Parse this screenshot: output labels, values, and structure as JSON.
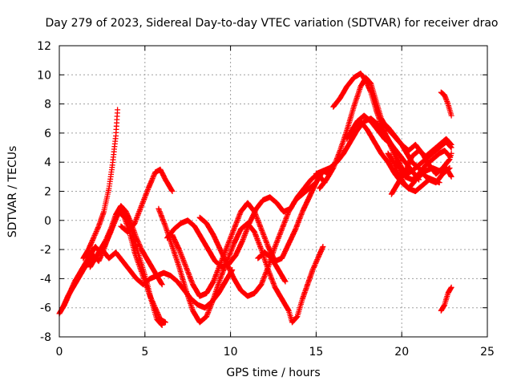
{
  "chart_data": {
    "type": "scatter",
    "title": "Day 279 of 2023, Sidereal Day-to-day VTEC variation (SDTVAR) for receiver drao",
    "xlabel": "GPS time / hours",
    "ylabel": "SDTVAR / TECUs",
    "xlim": [
      0,
      25
    ],
    "ylim": [
      -8,
      12
    ],
    "xticks": [
      0,
      5,
      10,
      15,
      20,
      25
    ],
    "yticks": [
      -8,
      -6,
      -4,
      -2,
      0,
      2,
      4,
      6,
      8,
      10,
      12
    ],
    "grid": true,
    "marker": "plus",
    "color": "#ff0000",
    "tracks": [
      [
        [
          0.0,
          -6.4
        ],
        [
          0.3,
          -5.8
        ],
        [
          0.6,
          -5.0
        ],
        [
          0.9,
          -4.2
        ],
        [
          1.2,
          -3.6
        ],
        [
          1.5,
          -3.0
        ],
        [
          1.8,
          -2.4
        ],
        [
          2.1,
          -1.8
        ],
        [
          2.4,
          -2.2
        ],
        [
          2.7,
          -1.6
        ],
        [
          3.0,
          -0.8
        ],
        [
          3.3,
          0.2
        ],
        [
          3.6,
          0.8
        ],
        [
          3.9,
          0.4
        ],
        [
          4.2,
          -0.6
        ],
        [
          4.5,
          -1.8
        ],
        [
          4.8,
          -3.0
        ],
        [
          5.1,
          -4.2
        ],
        [
          5.4,
          -5.6
        ],
        [
          5.7,
          -6.8
        ],
        [
          6.0,
          -7.2
        ]
      ],
      [
        [
          0.2,
          -6.0
        ],
        [
          0.5,
          -5.2
        ],
        [
          0.8,
          -4.6
        ],
        [
          1.1,
          -4.0
        ],
        [
          1.4,
          -3.4
        ],
        [
          1.7,
          -2.8
        ],
        [
          2.0,
          -2.4
        ],
        [
          2.3,
          -2.8
        ],
        [
          2.6,
          -2.0
        ],
        [
          2.9,
          -1.0
        ],
        [
          3.2,
          -0.2
        ],
        [
          3.5,
          0.6
        ],
        [
          3.8,
          0.2
        ],
        [
          4.1,
          -0.8
        ],
        [
          4.4,
          -2.2
        ],
        [
          4.7,
          -3.2
        ],
        [
          5.0,
          -4.2
        ],
        [
          5.3,
          -5.2
        ],
        [
          5.6,
          -6.0
        ],
        [
          5.9,
          -6.8
        ],
        [
          6.2,
          -7.0
        ]
      ],
      [
        [
          1.4,
          -2.6
        ],
        [
          1.7,
          -2.0
        ],
        [
          2.0,
          -1.2
        ],
        [
          2.3,
          -0.4
        ],
        [
          2.6,
          0.6
        ],
        [
          2.9,
          2.2
        ],
        [
          3.1,
          3.8
        ],
        [
          3.3,
          5.8
        ],
        [
          3.4,
          7.6
        ]
      ],
      [
        [
          1.8,
          -3.2
        ],
        [
          2.1,
          -2.6
        ],
        [
          2.4,
          -2.0
        ],
        [
          2.7,
          -1.4
        ],
        [
          3.0,
          -0.6
        ],
        [
          3.3,
          0.4
        ],
        [
          3.6,
          1.0
        ],
        [
          3.9,
          0.6
        ],
        [
          4.2,
          -0.2
        ],
        [
          4.5,
          -1.2
        ],
        [
          4.8,
          -2.0
        ],
        [
          5.1,
          -2.6
        ],
        [
          5.4,
          -3.2
        ],
        [
          5.7,
          -3.8
        ],
        [
          6.0,
          -4.4
        ]
      ],
      [
        [
          3.6,
          -0.4
        ],
        [
          4.0,
          -0.8
        ],
        [
          4.4,
          -0.2
        ],
        [
          4.8,
          1.0
        ],
        [
          5.2,
          2.2
        ],
        [
          5.6,
          3.3
        ],
        [
          5.9,
          3.5
        ],
        [
          6.2,
          2.8
        ],
        [
          6.5,
          2.2
        ],
        [
          6.6,
          2.0
        ]
      ],
      [
        [
          2.5,
          -2.0
        ],
        [
          2.9,
          -2.6
        ],
        [
          3.3,
          -2.2
        ],
        [
          3.7,
          -2.8
        ],
        [
          4.1,
          -3.4
        ],
        [
          4.5,
          -4.0
        ],
        [
          4.9,
          -4.4
        ],
        [
          5.3,
          -4.0
        ],
        [
          5.7,
          -3.8
        ],
        [
          6.1,
          -3.6
        ],
        [
          6.5,
          -3.8
        ],
        [
          6.9,
          -4.2
        ],
        [
          7.3,
          -4.8
        ],
        [
          7.7,
          -5.4
        ],
        [
          8.1,
          -5.8
        ],
        [
          8.5,
          -6.0
        ],
        [
          8.9,
          -5.6
        ],
        [
          9.3,
          -5.0
        ],
        [
          9.7,
          -4.2
        ],
        [
          10.1,
          -3.4
        ]
      ],
      [
        [
          5.8,
          0.8
        ],
        [
          6.2,
          -0.4
        ],
        [
          6.6,
          -1.8
        ],
        [
          7.0,
          -3.2
        ],
        [
          7.4,
          -4.8
        ],
        [
          7.8,
          -6.2
        ],
        [
          8.2,
          -7.0
        ],
        [
          8.6,
          -6.6
        ],
        [
          9.0,
          -5.4
        ],
        [
          9.4,
          -4.0
        ],
        [
          9.8,
          -2.8
        ],
        [
          10.2,
          -1.6
        ],
        [
          10.6,
          -0.6
        ],
        [
          11.0,
          -0.2
        ],
        [
          11.4,
          -0.8
        ],
        [
          11.8,
          -2.0
        ],
        [
          12.2,
          -3.4
        ],
        [
          12.6,
          -4.6
        ],
        [
          13.0,
          -5.4
        ],
        [
          13.4,
          -6.2
        ],
        [
          13.6,
          -7.0
        ],
        [
          13.9,
          -6.6
        ],
        [
          14.2,
          -5.4
        ],
        [
          14.5,
          -4.4
        ],
        [
          14.8,
          -3.4
        ],
        [
          15.1,
          -2.6
        ],
        [
          15.4,
          -1.8
        ]
      ],
      [
        [
          6.3,
          -1.2
        ],
        [
          6.7,
          -0.6
        ],
        [
          7.1,
          -0.2
        ],
        [
          7.5,
          0.0
        ],
        [
          7.9,
          -0.4
        ],
        [
          8.3,
          -1.2
        ],
        [
          8.7,
          -2.0
        ],
        [
          9.1,
          -2.8
        ],
        [
          9.5,
          -3.2
        ],
        [
          9.9,
          -3.0
        ],
        [
          10.3,
          -2.4
        ],
        [
          10.7,
          -1.4
        ],
        [
          11.1,
          -0.2
        ],
        [
          11.5,
          0.8
        ],
        [
          11.9,
          1.4
        ],
        [
          12.3,
          1.6
        ],
        [
          12.7,
          1.2
        ],
        [
          13.1,
          0.6
        ],
        [
          13.5,
          0.8
        ],
        [
          13.9,
          1.6
        ],
        [
          14.3,
          2.2
        ],
        [
          14.7,
          2.8
        ],
        [
          15.1,
          3.2
        ],
        [
          15.5,
          2.6
        ]
      ],
      [
        [
          6.6,
          -1.0
        ],
        [
          7.0,
          -2.0
        ],
        [
          7.4,
          -3.2
        ],
        [
          7.8,
          -4.4
        ],
        [
          8.2,
          -5.2
        ],
        [
          8.6,
          -5.0
        ],
        [
          9.0,
          -4.2
        ],
        [
          9.4,
          -3.0
        ],
        [
          9.8,
          -1.8
        ],
        [
          10.2,
          -0.6
        ],
        [
          10.6,
          0.6
        ],
        [
          11.0,
          1.2
        ],
        [
          11.4,
          0.6
        ],
        [
          11.8,
          -0.6
        ],
        [
          12.2,
          -1.8
        ],
        [
          12.6,
          -2.8
        ],
        [
          13.0,
          -2.6
        ],
        [
          13.4,
          -1.6
        ],
        [
          13.8,
          -0.6
        ],
        [
          14.2,
          0.6
        ],
        [
          14.6,
          1.6
        ],
        [
          15.0,
          2.6
        ],
        [
          15.4,
          3.4
        ],
        [
          15.8,
          3.2
        ]
      ],
      [
        [
          8.2,
          0.2
        ],
        [
          8.6,
          -0.2
        ],
        [
          9.0,
          -1.0
        ],
        [
          9.4,
          -2.0
        ],
        [
          9.8,
          -3.0
        ],
        [
          10.2,
          -4.0
        ],
        [
          10.6,
          -4.8
        ],
        [
          11.0,
          -5.2
        ],
        [
          11.4,
          -5.0
        ],
        [
          11.8,
          -4.4
        ],
        [
          12.2,
          -3.2
        ],
        [
          12.6,
          -1.8
        ],
        [
          13.0,
          -0.6
        ],
        [
          13.4,
          0.6
        ],
        [
          13.8,
          1.4
        ],
        [
          14.2,
          1.8
        ],
        [
          14.6,
          2.2
        ],
        [
          15.0,
          2.6
        ]
      ],
      [
        [
          15.0,
          3.2
        ],
        [
          15.4,
          3.4
        ],
        [
          15.8,
          3.6
        ],
        [
          16.2,
          4.0
        ],
        [
          16.6,
          4.6
        ],
        [
          17.0,
          5.4
        ],
        [
          17.4,
          6.2
        ],
        [
          17.8,
          6.8
        ],
        [
          18.2,
          7.0
        ],
        [
          18.6,
          6.6
        ],
        [
          19.0,
          6.0
        ],
        [
          19.4,
          5.0
        ],
        [
          19.8,
          3.8
        ],
        [
          20.2,
          3.0
        ],
        [
          20.6,
          2.8
        ],
        [
          21.0,
          3.0
        ],
        [
          21.4,
          3.4
        ],
        [
          21.8,
          3.6
        ],
        [
          22.2,
          3.4
        ],
        [
          22.6,
          3.6
        ],
        [
          22.9,
          3.0
        ]
      ],
      [
        [
          15.2,
          2.2
        ],
        [
          15.6,
          2.8
        ],
        [
          16.0,
          3.6
        ],
        [
          16.4,
          4.8
        ],
        [
          16.8,
          6.2
        ],
        [
          17.2,
          7.8
        ],
        [
          17.6,
          9.2
        ],
        [
          17.9,
          9.8
        ],
        [
          18.2,
          9.4
        ],
        [
          18.5,
          8.2
        ],
        [
          18.8,
          7.0
        ],
        [
          19.1,
          6.4
        ],
        [
          19.4,
          6.0
        ],
        [
          19.7,
          5.6
        ],
        [
          20.0,
          5.2
        ],
        [
          20.3,
          4.6
        ],
        [
          20.6,
          4.0
        ],
        [
          21.0,
          3.6
        ],
        [
          21.4,
          3.0
        ],
        [
          21.8,
          2.8
        ],
        [
          22.2,
          2.6
        ]
      ],
      [
        [
          16.0,
          7.8
        ],
        [
          16.4,
          8.4
        ],
        [
          16.8,
          9.2
        ],
        [
          17.2,
          9.8
        ],
        [
          17.6,
          10.1
        ],
        [
          17.9,
          9.6
        ],
        [
          18.2,
          8.8
        ],
        [
          18.5,
          7.6
        ],
        [
          18.8,
          6.6
        ],
        [
          19.1,
          5.8
        ],
        [
          19.4,
          5.2
        ],
        [
          19.7,
          4.4
        ],
        [
          20.0,
          3.6
        ],
        [
          20.3,
          3.2
        ],
        [
          20.6,
          3.4
        ],
        [
          21.0,
          3.8
        ],
        [
          21.4,
          4.2
        ],
        [
          21.8,
          4.6
        ],
        [
          22.2,
          5.0
        ],
        [
          22.6,
          5.4
        ],
        [
          22.9,
          5.0
        ]
      ],
      [
        [
          16.8,
          5.6
        ],
        [
          17.2,
          6.4
        ],
        [
          17.6,
          6.8
        ],
        [
          18.0,
          6.2
        ],
        [
          18.4,
          5.4
        ],
        [
          18.8,
          4.6
        ],
        [
          19.2,
          4.0
        ],
        [
          19.6,
          3.2
        ],
        [
          20.0,
          2.6
        ],
        [
          20.4,
          2.2
        ],
        [
          20.8,
          2.0
        ],
        [
          21.2,
          2.4
        ],
        [
          21.6,
          2.8
        ],
        [
          22.0,
          2.6
        ],
        [
          22.4,
          3.2
        ],
        [
          22.8,
          3.6
        ]
      ],
      [
        [
          18.8,
          6.8
        ],
        [
          19.2,
          6.4
        ],
        [
          19.6,
          5.8
        ],
        [
          20.0,
          5.2
        ],
        [
          20.4,
          4.8
        ],
        [
          20.8,
          5.2
        ],
        [
          21.2,
          4.6
        ],
        [
          21.6,
          3.8
        ],
        [
          22.0,
          3.2
        ],
        [
          22.4,
          3.6
        ],
        [
          22.8,
          4.2
        ],
        [
          22.9,
          4.6
        ]
      ],
      [
        [
          19.2,
          4.6
        ],
        [
          19.5,
          4.0
        ],
        [
          19.8,
          3.2
        ],
        [
          20.1,
          2.6
        ],
        [
          20.4,
          2.2
        ],
        [
          20.7,
          2.6
        ],
        [
          21.0,
          3.2
        ],
        [
          21.4,
          3.8
        ],
        [
          21.8,
          4.2
        ],
        [
          22.2,
          4.6
        ],
        [
          22.5,
          4.8
        ],
        [
          22.8,
          4.4
        ]
      ],
      [
        [
          19.4,
          1.8
        ],
        [
          19.7,
          2.4
        ],
        [
          20.0,
          3.0
        ],
        [
          20.3,
          3.6
        ],
        [
          20.6,
          4.4
        ],
        [
          21.0,
          4.8
        ],
        [
          21.4,
          4.4
        ],
        [
          21.8,
          4.8
        ],
        [
          22.2,
          5.2
        ],
        [
          22.6,
          5.6
        ],
        [
          22.9,
          5.2
        ]
      ],
      [
        [
          22.3,
          8.8
        ],
        [
          22.5,
          8.6
        ],
        [
          22.7,
          8.0
        ],
        [
          22.9,
          7.2
        ]
      ],
      [
        [
          22.3,
          -6.2
        ],
        [
          22.5,
          -5.8
        ],
        [
          22.7,
          -5.0
        ],
        [
          22.9,
          -4.6
        ]
      ],
      [
        [
          17.0,
          6.0
        ],
        [
          17.4,
          6.8
        ],
        [
          17.8,
          7.2
        ],
        [
          18.2,
          6.8
        ],
        [
          18.6,
          6.2
        ],
        [
          19.0,
          5.6
        ],
        [
          19.4,
          5.2
        ],
        [
          19.8,
          4.6
        ],
        [
          20.2,
          4.0
        ],
        [
          20.6,
          3.4
        ],
        [
          21.0,
          2.8
        ]
      ],
      [
        [
          11.6,
          -2.6
        ],
        [
          12.0,
          -2.2
        ],
        [
          12.4,
          -2.6
        ],
        [
          12.8,
          -3.4
        ],
        [
          13.2,
          -4.2
        ]
      ]
    ]
  }
}
